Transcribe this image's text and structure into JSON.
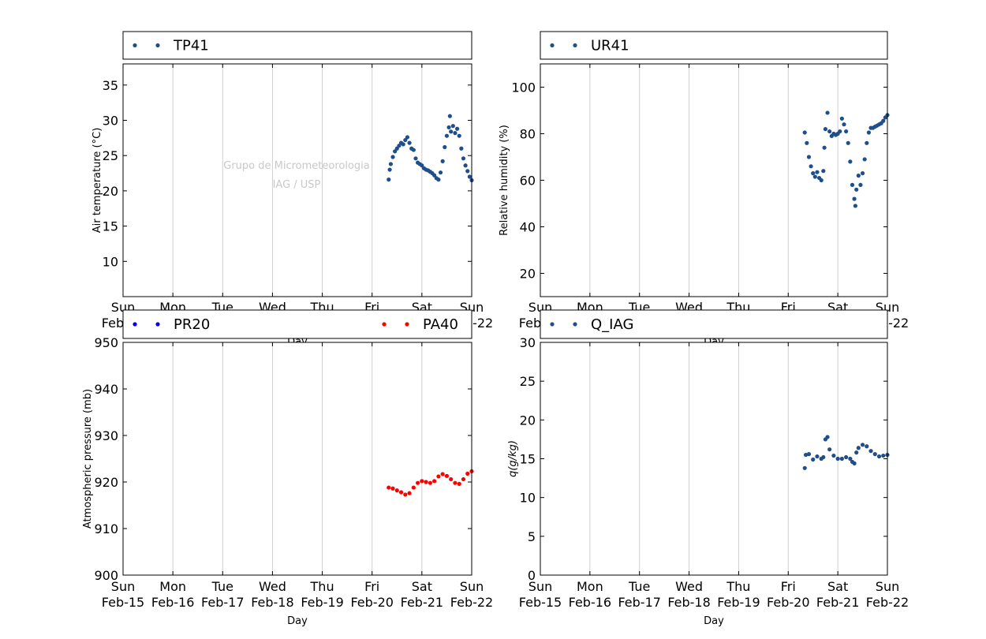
{
  "x_tick_days": [
    "Sun",
    "Mon",
    "Tue",
    "Wed",
    "Thu",
    "Fri",
    "Sat",
    "Sun"
  ],
  "x_tick_dates": [
    "Feb-15",
    "Feb-16",
    "Feb-17",
    "Feb-18",
    "Feb-19",
    "Feb-20",
    "Feb-21",
    "Feb-22"
  ],
  "watermark": [
    "Grupo de Micrometeorologia",
    "IAG / USP"
  ],
  "chart_data": [
    {
      "id": "temperature",
      "type": "scatter",
      "xlabel": "Day",
      "ylabel": "Air temperature (°C)",
      "xlim": [
        "2015-02-15",
        "2015-02-22"
      ],
      "ylim": [
        5,
        38
      ],
      "yticks": [
        10,
        15,
        20,
        25,
        30,
        35
      ],
      "grid": "vertical",
      "legend_position": "above",
      "series": [
        {
          "name": "TP41",
          "color": "#1f4e8c",
          "points": [
            [
              "2015-02-20 08:00",
              21.6
            ],
            [
              "2015-02-20 08:30",
              23.0
            ],
            [
              "2015-02-20 09:00",
              23.8
            ],
            [
              "2015-02-20 10:00",
              24.8
            ],
            [
              "2015-02-20 11:00",
              25.6
            ],
            [
              "2015-02-20 12:00",
              26.0
            ],
            [
              "2015-02-20 13:00",
              26.4
            ],
            [
              "2015-02-20 14:00",
              26.8
            ],
            [
              "2015-02-20 15:00",
              26.6
            ],
            [
              "2015-02-20 16:00",
              27.2
            ],
            [
              "2015-02-20 17:00",
              27.6
            ],
            [
              "2015-02-20 18:00",
              26.8
            ],
            [
              "2015-02-20 19:00",
              26.0
            ],
            [
              "2015-02-20 20:00",
              25.8
            ],
            [
              "2015-02-20 21:00",
              24.6
            ],
            [
              "2015-02-20 22:00",
              24.0
            ],
            [
              "2015-02-20 23:00",
              23.8
            ],
            [
              "2015-02-21 00:00",
              23.6
            ],
            [
              "2015-02-21 01:00",
              23.2
            ],
            [
              "2015-02-21 02:00",
              23.0
            ],
            [
              "2015-02-21 03:00",
              22.9
            ],
            [
              "2015-02-21 04:00",
              22.7
            ],
            [
              "2015-02-21 05:00",
              22.5
            ],
            [
              "2015-02-21 06:00",
              22.2
            ],
            [
              "2015-02-21 07:00",
              21.8
            ],
            [
              "2015-02-21 08:00",
              21.6
            ],
            [
              "2015-02-21 09:00",
              22.6
            ],
            [
              "2015-02-21 10:00",
              24.2
            ],
            [
              "2015-02-21 11:00",
              26.2
            ],
            [
              "2015-02-21 12:00",
              27.8
            ],
            [
              "2015-02-21 13:00",
              29.0
            ],
            [
              "2015-02-21 13:30",
              30.6
            ],
            [
              "2015-02-21 14:00",
              28.4
            ],
            [
              "2015-02-21 15:00",
              29.2
            ],
            [
              "2015-02-21 16:00",
              28.2
            ],
            [
              "2015-02-21 17:00",
              28.8
            ],
            [
              "2015-02-21 18:00",
              27.8
            ],
            [
              "2015-02-21 19:00",
              26.0
            ],
            [
              "2015-02-21 20:00",
              24.6
            ],
            [
              "2015-02-21 21:00",
              23.6
            ],
            [
              "2015-02-21 22:00",
              22.8
            ],
            [
              "2015-02-21 23:00",
              22.0
            ],
            [
              "2015-02-22 00:00",
              21.5
            ]
          ]
        }
      ]
    },
    {
      "id": "humidity",
      "type": "scatter",
      "xlabel": "Day",
      "ylabel": "Relative humidity (%)",
      "xlim": [
        "2015-02-15",
        "2015-02-22"
      ],
      "ylim": [
        10,
        110
      ],
      "yticks": [
        20,
        40,
        60,
        80,
        100
      ],
      "grid": "vertical",
      "legend_position": "above",
      "series": [
        {
          "name": "UR41",
          "color": "#1f4e8c",
          "points": [
            [
              "2015-02-20 08:00",
              80.5
            ],
            [
              "2015-02-20 09:00",
              76.0
            ],
            [
              "2015-02-20 10:00",
              70.0
            ],
            [
              "2015-02-20 11:00",
              66.0
            ],
            [
              "2015-02-20 12:00",
              63.0
            ],
            [
              "2015-02-20 13:00",
              61.5
            ],
            [
              "2015-02-20 14:00",
              63.5
            ],
            [
              "2015-02-20 15:00",
              61.0
            ],
            [
              "2015-02-20 16:00",
              60.0
            ],
            [
              "2015-02-20 17:00",
              64.0
            ],
            [
              "2015-02-20 17:30",
              74.0
            ],
            [
              "2015-02-20 18:00",
              82.0
            ],
            [
              "2015-02-20 19:00",
              89.0
            ],
            [
              "2015-02-20 20:00",
              81.0
            ],
            [
              "2015-02-20 21:00",
              79.0
            ],
            [
              "2015-02-20 22:00",
              80.0
            ],
            [
              "2015-02-20 23:00",
              79.5
            ],
            [
              "2015-02-21 00:00",
              80.0
            ],
            [
              "2015-02-21 01:00",
              81.0
            ],
            [
              "2015-02-21 02:00",
              86.5
            ],
            [
              "2015-02-21 03:00",
              84.0
            ],
            [
              "2015-02-21 04:00",
              81.0
            ],
            [
              "2015-02-21 05:00",
              76.0
            ],
            [
              "2015-02-21 06:00",
              68.0
            ],
            [
              "2015-02-21 07:00",
              58.0
            ],
            [
              "2015-02-21 08:00",
              52.0
            ],
            [
              "2015-02-21 08:30",
              49.0
            ],
            [
              "2015-02-21 09:00",
              56.0
            ],
            [
              "2015-02-21 10:00",
              62.0
            ],
            [
              "2015-02-21 11:00",
              58.0
            ],
            [
              "2015-02-21 12:00",
              63.0
            ],
            [
              "2015-02-21 13:00",
              69.0
            ],
            [
              "2015-02-21 14:00",
              76.0
            ],
            [
              "2015-02-21 15:00",
              80.5
            ],
            [
              "2015-02-21 16:00",
              82.5
            ],
            [
              "2015-02-21 17:00",
              82.5
            ],
            [
              "2015-02-21 18:00",
              83.0
            ],
            [
              "2015-02-21 19:00",
              83.5
            ],
            [
              "2015-02-21 20:00",
              84.0
            ],
            [
              "2015-02-21 21:00",
              84.5
            ],
            [
              "2015-02-21 22:00",
              85.5
            ],
            [
              "2015-02-21 23:00",
              87.0
            ],
            [
              "2015-02-22 00:00",
              88.0
            ]
          ]
        }
      ]
    },
    {
      "id": "pressure",
      "type": "scatter",
      "xlabel": "Day",
      "ylabel": "Atmospheric pressure (mb)",
      "xlim": [
        "2015-02-15",
        "2015-02-22"
      ],
      "ylim": [
        900,
        950
      ],
      "yticks": [
        900,
        910,
        920,
        930,
        940,
        950
      ],
      "grid": "vertical",
      "legend_position": "above",
      "series": [
        {
          "name": "PR20",
          "color": "#0000ff",
          "points": []
        },
        {
          "name": "PA40",
          "color": "#ff0000",
          "points": [
            [
              "2015-02-20 08:00",
              918.8
            ],
            [
              "2015-02-20 10:00",
              918.6
            ],
            [
              "2015-02-20 12:00",
              918.2
            ],
            [
              "2015-02-20 14:00",
              917.8
            ],
            [
              "2015-02-20 16:00",
              917.3
            ],
            [
              "2015-02-20 18:00",
              917.6
            ],
            [
              "2015-02-20 20:00",
              918.8
            ],
            [
              "2015-02-20 22:00",
              919.8
            ],
            [
              "2015-02-21 00:00",
              920.2
            ],
            [
              "2015-02-21 02:00",
              920.0
            ],
            [
              "2015-02-21 04:00",
              919.8
            ],
            [
              "2015-02-21 06:00",
              920.2
            ],
            [
              "2015-02-21 08:00",
              921.2
            ],
            [
              "2015-02-21 10:00",
              921.7
            ],
            [
              "2015-02-21 12:00",
              921.3
            ],
            [
              "2015-02-21 14:00",
              920.6
            ],
            [
              "2015-02-21 16:00",
              919.8
            ],
            [
              "2015-02-21 18:00",
              919.6
            ],
            [
              "2015-02-21 20:00",
              920.6
            ],
            [
              "2015-02-21 22:00",
              921.8
            ],
            [
              "2015-02-22 00:00",
              922.3
            ]
          ]
        }
      ]
    },
    {
      "id": "specific_humidity",
      "type": "scatter",
      "xlabel": "Day",
      "ylabel": "q(g/kg)",
      "xlim": [
        "2015-02-15",
        "2015-02-22"
      ],
      "ylim": [
        0,
        30
      ],
      "yticks": [
        0,
        5,
        10,
        15,
        20,
        25,
        30
      ],
      "grid": "vertical",
      "legend_position": "above",
      "series": [
        {
          "name": "Q_IAG",
          "color": "#1f4e8c",
          "points": [
            [
              "2015-02-20 08:00",
              13.8
            ],
            [
              "2015-02-20 08:30",
              15.5
            ],
            [
              "2015-02-20 10:00",
              15.6
            ],
            [
              "2015-02-20 12:00",
              14.9
            ],
            [
              "2015-02-20 14:00",
              15.3
            ],
            [
              "2015-02-20 16:00",
              15.0
            ],
            [
              "2015-02-20 17:00",
              15.2
            ],
            [
              "2015-02-20 18:00",
              17.5
            ],
            [
              "2015-02-20 19:00",
              17.8
            ],
            [
              "2015-02-20 20:00",
              16.2
            ],
            [
              "2015-02-20 22:00",
              15.4
            ],
            [
              "2015-02-21 00:00",
              15.0
            ],
            [
              "2015-02-21 02:00",
              15.0
            ],
            [
              "2015-02-21 04:00",
              15.2
            ],
            [
              "2015-02-21 06:00",
              15.0
            ],
            [
              "2015-02-21 07:00",
              14.6
            ],
            [
              "2015-02-21 08:00",
              14.4
            ],
            [
              "2015-02-21 09:00",
              15.8
            ],
            [
              "2015-02-21 10:00",
              16.4
            ],
            [
              "2015-02-21 12:00",
              16.8
            ],
            [
              "2015-02-21 14:00",
              16.6
            ],
            [
              "2015-02-21 16:00",
              16.0
            ],
            [
              "2015-02-21 18:00",
              15.6
            ],
            [
              "2015-02-21 20:00",
              15.3
            ],
            [
              "2015-02-21 22:00",
              15.4
            ],
            [
              "2015-02-22 00:00",
              15.5
            ]
          ]
        }
      ]
    }
  ]
}
